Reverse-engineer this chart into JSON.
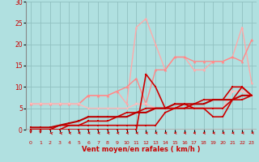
{
  "background_color": "#b0e0e0",
  "grid_color": "#90c0c0",
  "xlabel": "Vent moyen/en rafales ( km/h )",
  "xlabel_color": "#cc0000",
  "tick_color": "#cc0000",
  "x_max": 24,
  "y_max": 30,
  "y_min": 0,
  "y_ticks": [
    0,
    5,
    10,
    15,
    20,
    25,
    30
  ],
  "series": [
    {
      "x": [
        0,
        1,
        2,
        3,
        4,
        5,
        6,
        7,
        8,
        9,
        10,
        11,
        12,
        13,
        14,
        15,
        16,
        17,
        18,
        19,
        20,
        21,
        22,
        23
      ],
      "y": [
        6,
        6,
        6,
        6,
        6,
        6,
        8,
        8,
        8,
        9,
        6,
        24,
        26,
        20,
        14,
        17,
        17,
        14,
        14,
        16,
        16,
        17,
        24,
        11
      ],
      "color": "#ffaaaa",
      "lw": 1.0,
      "marker": "^",
      "ms": 2.5
    },
    {
      "x": [
        0,
        1,
        2,
        3,
        4,
        5,
        6,
        7,
        8,
        9,
        10,
        11,
        12,
        13,
        14,
        15,
        16,
        17,
        18,
        19,
        20,
        21,
        22,
        23
      ],
      "y": [
        6,
        6,
        6,
        6,
        6,
        6,
        8,
        8,
        8,
        9,
        10,
        12,
        6,
        14,
        14,
        17,
        17,
        16,
        16,
        16,
        16,
        17,
        16,
        21
      ],
      "color": "#ff8888",
      "lw": 1.0,
      "marker": "^",
      "ms": 2.5
    },
    {
      "x": [
        0,
        1,
        2,
        3,
        4,
        5,
        6,
        7,
        8,
        9,
        10,
        11,
        12,
        13,
        14,
        15,
        16,
        17,
        18,
        19,
        20,
        21,
        22,
        23
      ],
      "y": [
        6,
        6,
        6,
        6,
        6,
        6,
        5,
        5,
        5,
        5,
        5,
        6,
        6,
        5,
        5,
        6,
        6,
        5,
        5,
        5,
        5,
        9,
        9,
        8
      ],
      "color": "#ffbbbb",
      "lw": 1.0,
      "marker": "v",
      "ms": 2.5
    },
    {
      "x": [
        0,
        1,
        2,
        3,
        4,
        5,
        6,
        7,
        8,
        9,
        10,
        11,
        12,
        13,
        14,
        15,
        16,
        17,
        18,
        19,
        20,
        21,
        22,
        23
      ],
      "y": [
        0,
        0,
        0,
        0,
        0,
        0,
        0,
        0,
        0,
        0,
        0,
        0,
        13,
        10,
        5,
        5,
        5,
        6,
        7,
        7,
        7,
        10,
        10,
        8
      ],
      "color": "#cc0000",
      "lw": 1.2,
      "marker": "s",
      "ms": 2.0
    },
    {
      "x": [
        0,
        1,
        2,
        3,
        4,
        5,
        6,
        7,
        8,
        9,
        10,
        11,
        12,
        13,
        14,
        15,
        16,
        17,
        18,
        19,
        20,
        21,
        22,
        23
      ],
      "y": [
        0,
        0,
        0,
        0,
        1,
        1,
        1,
        1,
        1,
        1,
        1,
        1,
        1,
        1,
        4,
        5,
        6,
        5,
        5,
        3,
        3,
        7,
        10,
        8
      ],
      "color": "#cc0000",
      "lw": 1.2,
      "marker": "s",
      "ms": 2.0
    },
    {
      "x": [
        0,
        1,
        2,
        3,
        4,
        5,
        6,
        7,
        8,
        9,
        10,
        11,
        12,
        13,
        14,
        15,
        16,
        17,
        18,
        19,
        20,
        21,
        22,
        23
      ],
      "y": [
        0,
        0,
        0,
        1,
        1,
        1,
        2,
        2,
        2,
        3,
        4,
        4,
        5,
        5,
        5,
        5,
        5,
        5,
        5,
        5,
        5,
        7,
        7,
        8
      ],
      "color": "#cc0000",
      "lw": 1.2,
      "marker": "s",
      "ms": 2.0
    },
    {
      "x": [
        0,
        1,
        2,
        3,
        4,
        5,
        6,
        7,
        8,
        9,
        10,
        11,
        12,
        13,
        14,
        15,
        16,
        17,
        18,
        19,
        20,
        21,
        22,
        23
      ],
      "y": [
        0.5,
        0.5,
        0.5,
        1,
        1.5,
        2,
        3,
        3,
        3,
        3,
        3,
        4,
        4,
        5,
        5,
        6,
        6,
        6,
        6,
        7,
        7,
        7,
        8,
        8
      ],
      "color": "#bb0000",
      "lw": 1.5,
      "marker": "s",
      "ms": 2.0
    }
  ],
  "wind_dir": [
    0,
    0,
    225,
    225,
    250,
    270,
    270,
    250,
    250,
    250,
    260,
    270,
    270,
    270,
    270,
    280,
    270,
    270,
    270,
    270,
    270,
    280,
    290,
    300
  ],
  "wind_arrow_color": "#cc0000"
}
